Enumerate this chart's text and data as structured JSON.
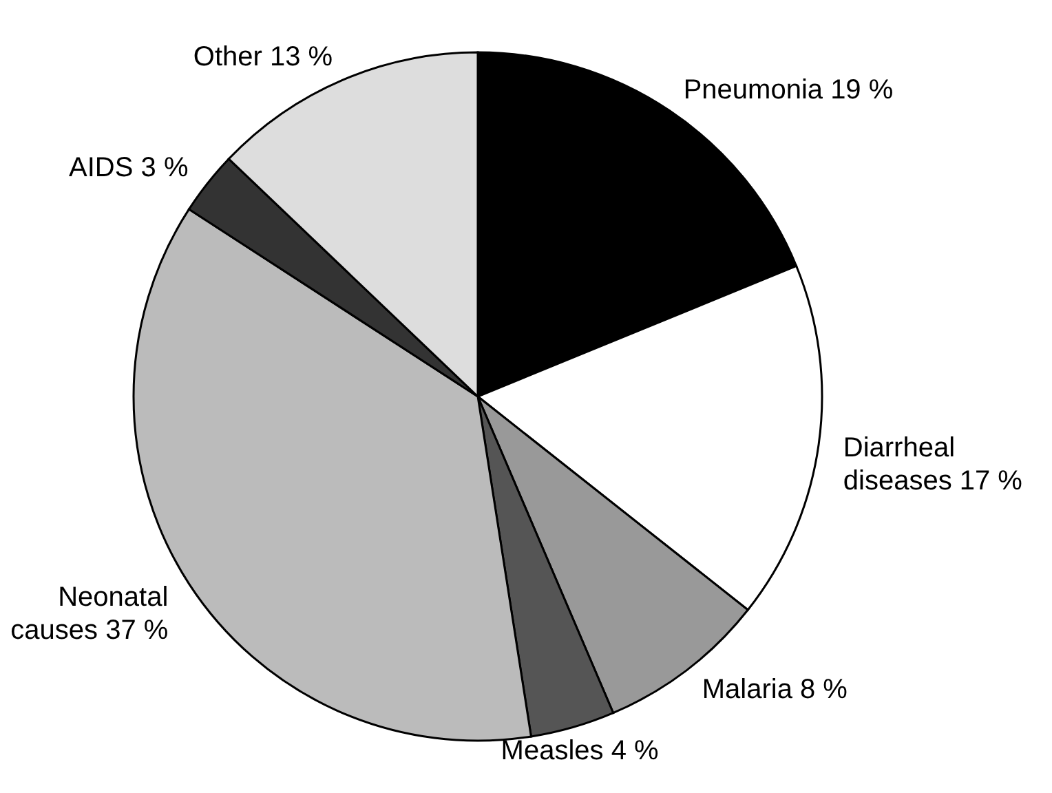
{
  "chart_data": {
    "type": "pie",
    "categories": [
      "Pneumonia",
      "Diarrheal diseases",
      "Malaria",
      "Measles",
      "Neonatal causes",
      "AIDS",
      "Other"
    ],
    "values": [
      19,
      17,
      8,
      4,
      37,
      3,
      13
    ],
    "value_labels": [
      "19 %",
      "17 %",
      "8 %",
      "4 %",
      "37 %",
      "3 %",
      "13 %"
    ],
    "colors": [
      "#000000",
      "#ffffff",
      "#999999",
      "#555555",
      "#bbbbbb",
      "#333333",
      "#dddddd"
    ],
    "legend": false
  }
}
